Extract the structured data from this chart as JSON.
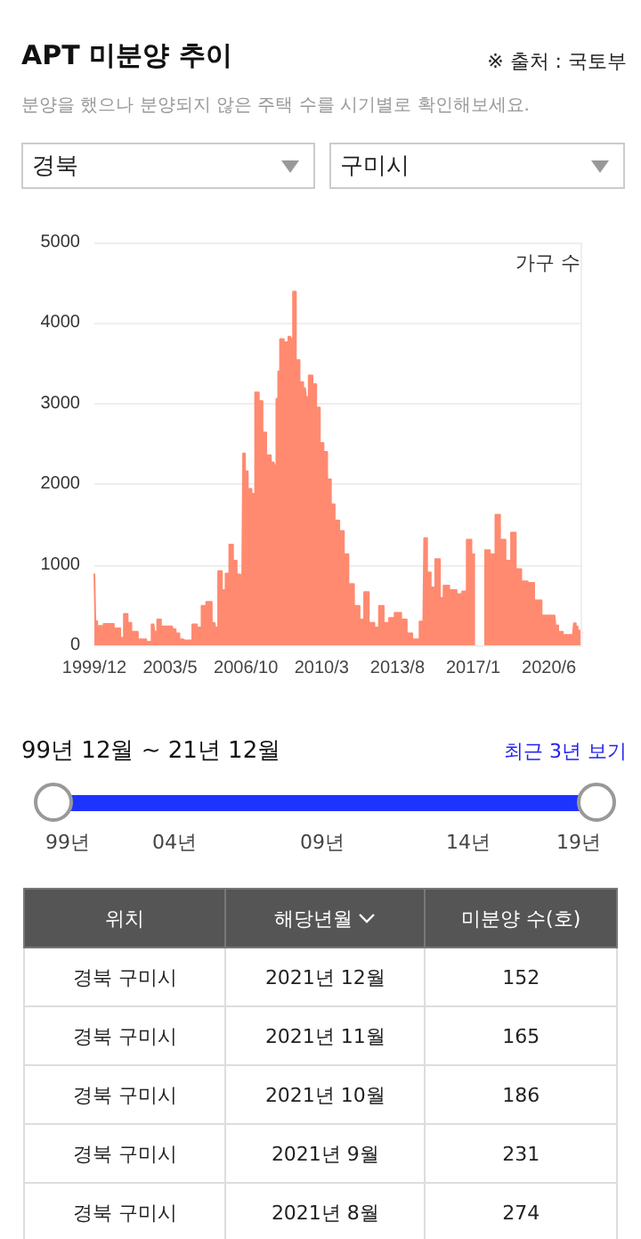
{
  "chart_data": [
    {
      "type": "other",
      "title": "APT 미분양 추이",
      "subtitle": "분양을 했으나 분양되지 않은 주택 수를 시기별로 확인해보세요.",
      "annotations": [
        "※ 출처 : 국토부",
        "경북",
        "구미시"
      ]
    },
    {
      "type": "area",
      "ylabel": "가구 수",
      "color": "#ff8a70",
      "x": [
        "1999-12",
        "2000-01",
        "2000-02",
        "2000-08",
        "2001-01",
        "2001-03",
        "2001-05",
        "2001-07",
        "2001-09",
        "2002-02",
        "2002-06",
        "2002-08",
        "2002-09",
        "2002-11",
        "2003-01",
        "2003-06",
        "2003-07",
        "2003-09",
        "2003-11",
        "2004-01",
        "2004-04",
        "2004-06",
        "2004-09",
        "2004-11",
        "2005-02",
        "2005-05",
        "2005-06",
        "2005-08",
        "2005-10",
        "2005-12",
        "2006-02",
        "2006-04",
        "2006-06",
        "2006-08",
        "2006-09",
        "2006-10",
        "2006-12",
        "2007-02",
        "2007-04",
        "2007-06",
        "2007-08",
        "2007-10",
        "2008-01",
        "2008-02",
        "2008-03",
        "2008-04",
        "2008-05",
        "2008-08",
        "2008-10",
        "2008-11",
        "2008-12",
        "2009-02",
        "2009-04",
        "2009-06",
        "2009-07",
        "2009-09",
        "2009-11",
        "2010-01",
        "2010-03",
        "2010-05",
        "2010-07",
        "2010-09",
        "2010-11",
        "2011-02",
        "2011-04",
        "2011-07",
        "2011-10",
        "2012-01",
        "2012-03",
        "2012-06",
        "2012-09",
        "2012-11",
        "2013-02",
        "2013-05",
        "2013-08",
        "2013-12",
        "2014-02",
        "2014-06",
        "2014-10",
        "2014-11",
        "2015-01",
        "2015-03",
        "2015-06",
        "2015-08",
        "2015-10",
        "2016-02",
        "2016-06",
        "2016-08",
        "2016-11",
        "2017-01",
        "2017-03",
        "2017-06",
        "2017-08",
        "2017-12",
        "2018-02",
        "2018-05",
        "2018-08",
        "2018-11",
        "2019-01",
        "2019-05",
        "2019-08",
        "2019-12",
        "2020-04",
        "2020-09",
        "2020-10",
        "2020-12",
        "2021-03",
        "2021-07",
        "2021-08",
        "2021-09",
        "2021-10",
        "2021-11",
        "2021-12"
      ],
      "values": [
        890,
        300,
        240,
        265,
        210,
        95,
        390,
        280,
        170,
        75,
        45,
        260,
        170,
        320,
        235,
        235,
        200,
        150,
        75,
        60,
        60,
        260,
        220,
        490,
        540,
        280,
        220,
        920,
        685,
        890,
        1250,
        1050,
        880,
        810,
        2380,
        2160,
        1940,
        1880,
        3140,
        3030,
        2640,
        2360,
        2270,
        2230,
        3060,
        3400,
        3800,
        3760,
        3830,
        3800,
        4390,
        3540,
        3265,
        3190,
        3080,
        3350,
        3240,
        2950,
        2510,
        2400,
        2060,
        1750,
        1550,
        1420,
        1130,
        760,
        490,
        320,
        660,
        280,
        220,
        490,
        280,
        340,
        405,
        320,
        150,
        75,
        295,
        1330,
        905,
        720,
        1070,
        590,
        740,
        685,
        635,
        670,
        1310,
        1130,
        null,
        null,
        1180,
        1130,
        1620,
        1310,
        1050,
        1400,
        945,
        795,
        775,
        560,
        370,
        370,
        245,
        170,
        130,
        130,
        274,
        231,
        186,
        165,
        152
      ],
      "xlim": [
        "1999-12",
        "2021-12"
      ],
      "xticks": [
        {
          "value": "1999-12",
          "label": "1999/12"
        },
        {
          "value": "2003-05",
          "label": "2003/5"
        },
        {
          "value": "2006-10",
          "label": "2006/10"
        },
        {
          "value": "2010-03",
          "label": "2010/3"
        },
        {
          "value": "2013-08",
          "label": "2013/8"
        },
        {
          "value": "2017-01",
          "label": "2017/1"
        },
        {
          "value": "2020-06",
          "label": "2020/6"
        }
      ],
      "ylim": [
        0,
        5000
      ],
      "yticks": [
        0,
        1000,
        2000,
        3000,
        4000,
        5000
      ],
      "grid": "y"
    },
    {
      "type": "other",
      "annotations": [
        "99년 12월 ~ 21년 12월",
        "최근 3년 보기",
        "99년",
        "04년",
        "09년",
        "14년",
        "19년"
      ]
    },
    {
      "type": "other",
      "annotations": [
        "위치",
        "해당년월",
        "미분양 수(호)",
        "경북 구미시",
        "2021년 12월",
        "152",
        "경북 구미시",
        "2021년 11월",
        "165",
        "경북 구미시",
        "2021년 10월",
        "186",
        "경북 구미시",
        "2021년 9월",
        "231",
        "경북 구미시",
        "2021년 8월",
        "274"
      ]
    }
  ]
}
